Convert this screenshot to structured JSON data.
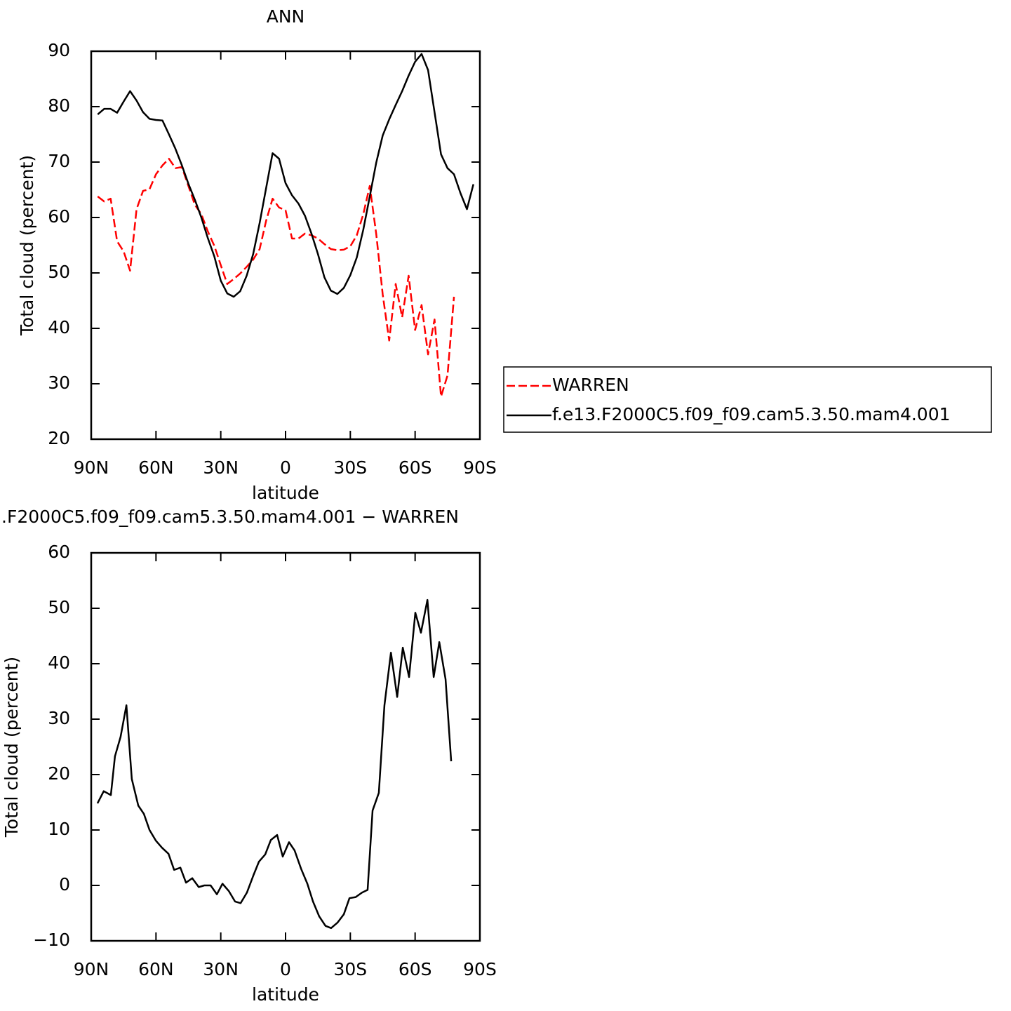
{
  "chart_data": [
    {
      "type": "line",
      "title": "ANN",
      "xlabel": "latitude",
      "ylabel": "Total cloud (percent)",
      "xlim": [
        90,
        -90
      ],
      "ylim": [
        20,
        90
      ],
      "xticks": [
        {
          "value": 90,
          "label": "90N"
        },
        {
          "value": 60,
          "label": "60N"
        },
        {
          "value": 30,
          "label": "30N"
        },
        0,
        {
          "value": -30,
          "label": "30S"
        },
        {
          "value": -60,
          "label": "60S"
        },
        {
          "value": -90,
          "label": "90S"
        }
      ],
      "yticks": [
        20,
        30,
        40,
        50,
        60,
        70,
        80,
        90
      ],
      "legend": "right",
      "series": [
        {
          "name": "WARREN",
          "color": "#ff0000",
          "line_style": "dashed",
          "x": [
            87,
            84,
            81,
            78,
            75,
            72,
            69,
            66,
            63,
            60,
            57,
            54,
            51,
            48,
            45,
            42,
            39,
            36,
            33,
            30,
            27,
            24,
            21,
            18,
            15,
            12,
            9,
            6,
            3,
            0,
            -3,
            -6,
            -9,
            -12,
            -15,
            -18,
            -21,
            -24,
            -27,
            -30,
            -33,
            -36,
            -39,
            -42,
            -45,
            -48,
            -51,
            -54,
            -57,
            -60,
            -63,
            -66,
            -69,
            -72,
            -75,
            -78
          ],
          "values": [
            63.8,
            62.9,
            63.4,
            55.7,
            53.9,
            50.4,
            61.5,
            64.8,
            65.1,
            67.8,
            69.4,
            70.6,
            68.9,
            69.1,
            65.7,
            62.3,
            60.6,
            57.5,
            54.9,
            51.4,
            48,
            48.9,
            49.9,
            51.1,
            52.4,
            54.3,
            59.4,
            63.4,
            61.8,
            61.3,
            56.2,
            56.2,
            57.1,
            56.8,
            56.2,
            55.2,
            54.3,
            54.1,
            54.2,
            54.8,
            56.8,
            60.6,
            65.7,
            57,
            46.1,
            37.8,
            48,
            42,
            49.5,
            39.7,
            44.2,
            35.3,
            41.6,
            27.7,
            31.5,
            45.7
          ]
        },
        {
          "name": "f.e13.F2000C5.f09_f09.cam5.3.50.mam4.001",
          "color": "#000000",
          "line_style": "solid",
          "x": [
            87,
            84,
            81,
            78,
            75,
            72,
            69,
            66,
            63,
            60,
            57,
            54,
            51,
            48,
            45,
            42,
            39,
            36,
            33,
            30,
            27,
            24,
            21,
            18,
            15,
            12,
            9,
            6,
            3,
            0,
            -3,
            -6,
            -9,
            -12,
            -15,
            -18,
            -21,
            -24,
            -27,
            -30,
            -33,
            -36,
            -39,
            -42,
            -45,
            -48,
            -51,
            -54,
            -57,
            -60,
            -63,
            -66,
            -69,
            -72,
            -75,
            -78,
            -81,
            -84,
            -87
          ],
          "values": [
            78.6,
            79.6,
            79.6,
            78.9,
            80.9,
            82.8,
            81.1,
            79,
            77.8,
            77.6,
            77.5,
            75,
            72.4,
            69.4,
            66.1,
            63.2,
            60,
            56.3,
            53,
            48.6,
            46.3,
            45.7,
            46.7,
            49.5,
            53.4,
            59,
            65.3,
            71.6,
            70.6,
            66.2,
            64,
            62.5,
            60.3,
            57.1,
            53.4,
            49.2,
            46.8,
            46.2,
            47.3,
            49.6,
            52.8,
            57.8,
            63.8,
            69.9,
            74.8,
            77.7,
            80.3,
            82.8,
            85.6,
            88.1,
            89.5,
            86.6,
            79,
            71.4,
            68.9,
            67.8,
            64.4,
            61.5,
            66
          ]
        }
      ]
    },
    {
      "type": "line",
      "title": ".F2000C5.f09_f09.cam5.3.50.mam4.001 − WARREN",
      "xlabel": "latitude",
      "ylabel": "Total cloud (percent)",
      "xlim": [
        90,
        -90
      ],
      "ylim": [
        -10,
        60
      ],
      "xticks": [
        {
          "value": 90,
          "label": "90N"
        },
        {
          "value": 60,
          "label": "60N"
        },
        {
          "value": 30,
          "label": "30N"
        },
        0,
        {
          "value": -30,
          "label": "30S"
        },
        {
          "value": -60,
          "label": "60S"
        },
        {
          "value": -90,
          "label": "90S"
        }
      ],
      "yticks": [
        {
          "value": -10,
          "label": "−10"
        },
        0,
        10,
        20,
        30,
        40,
        50,
        60
      ],
      "series": [
        {
          "color": "#000000",
          "line_style": "solid",
          "x": [
            87.1,
            84.2,
            80.9,
            79,
            76.4,
            73.7,
            71.2,
            68.2,
            65.6,
            63,
            60.1,
            57.2,
            54.2,
            51.6,
            48.7,
            46.1,
            43.2,
            40.2,
            37.6,
            34.7,
            31.8,
            29.2,
            26.3,
            23.4,
            20.8,
            17.9,
            14.9,
            12.3,
            9.4,
            6.8,
            3.9,
            1.3,
            -1.6,
            -4.2,
            -7.2,
            -10.1,
            -12.7,
            -15.6,
            -18.5,
            -21.1,
            -24.1,
            -27,
            -29.6,
            -32.5,
            -35.4,
            -38,
            -40.3,
            -43.2,
            -45.8,
            -48.8,
            -51.7,
            -54.3,
            -57.2,
            -60.1,
            -62.7,
            -65.7,
            -68.6,
            -71.2,
            -74.1,
            -76.7
          ],
          "values": [
            14.8,
            17,
            16.3,
            23.3,
            26.8,
            32.5,
            19.2,
            14.4,
            12.9,
            10,
            8.1,
            6.8,
            5.7,
            2.8,
            3.2,
            0.5,
            1.3,
            -0.3,
            0,
            0,
            -1.6,
            0.3,
            -1,
            -2.9,
            -3.2,
            -1.3,
            1.8,
            4.3,
            5.6,
            8.2,
            9.1,
            5.2,
            7.8,
            6.3,
            3,
            0.3,
            -2.9,
            -5.6,
            -7.3,
            -7.7,
            -6.7,
            -5.2,
            -2.3,
            -2.1,
            -1.3,
            -0.8,
            13.5,
            16.7,
            32.5,
            42,
            34,
            42.9,
            37.6,
            49.2,
            45.6,
            51.5,
            37.6,
            43.9,
            37.2,
            22.4
          ]
        }
      ]
    }
  ]
}
